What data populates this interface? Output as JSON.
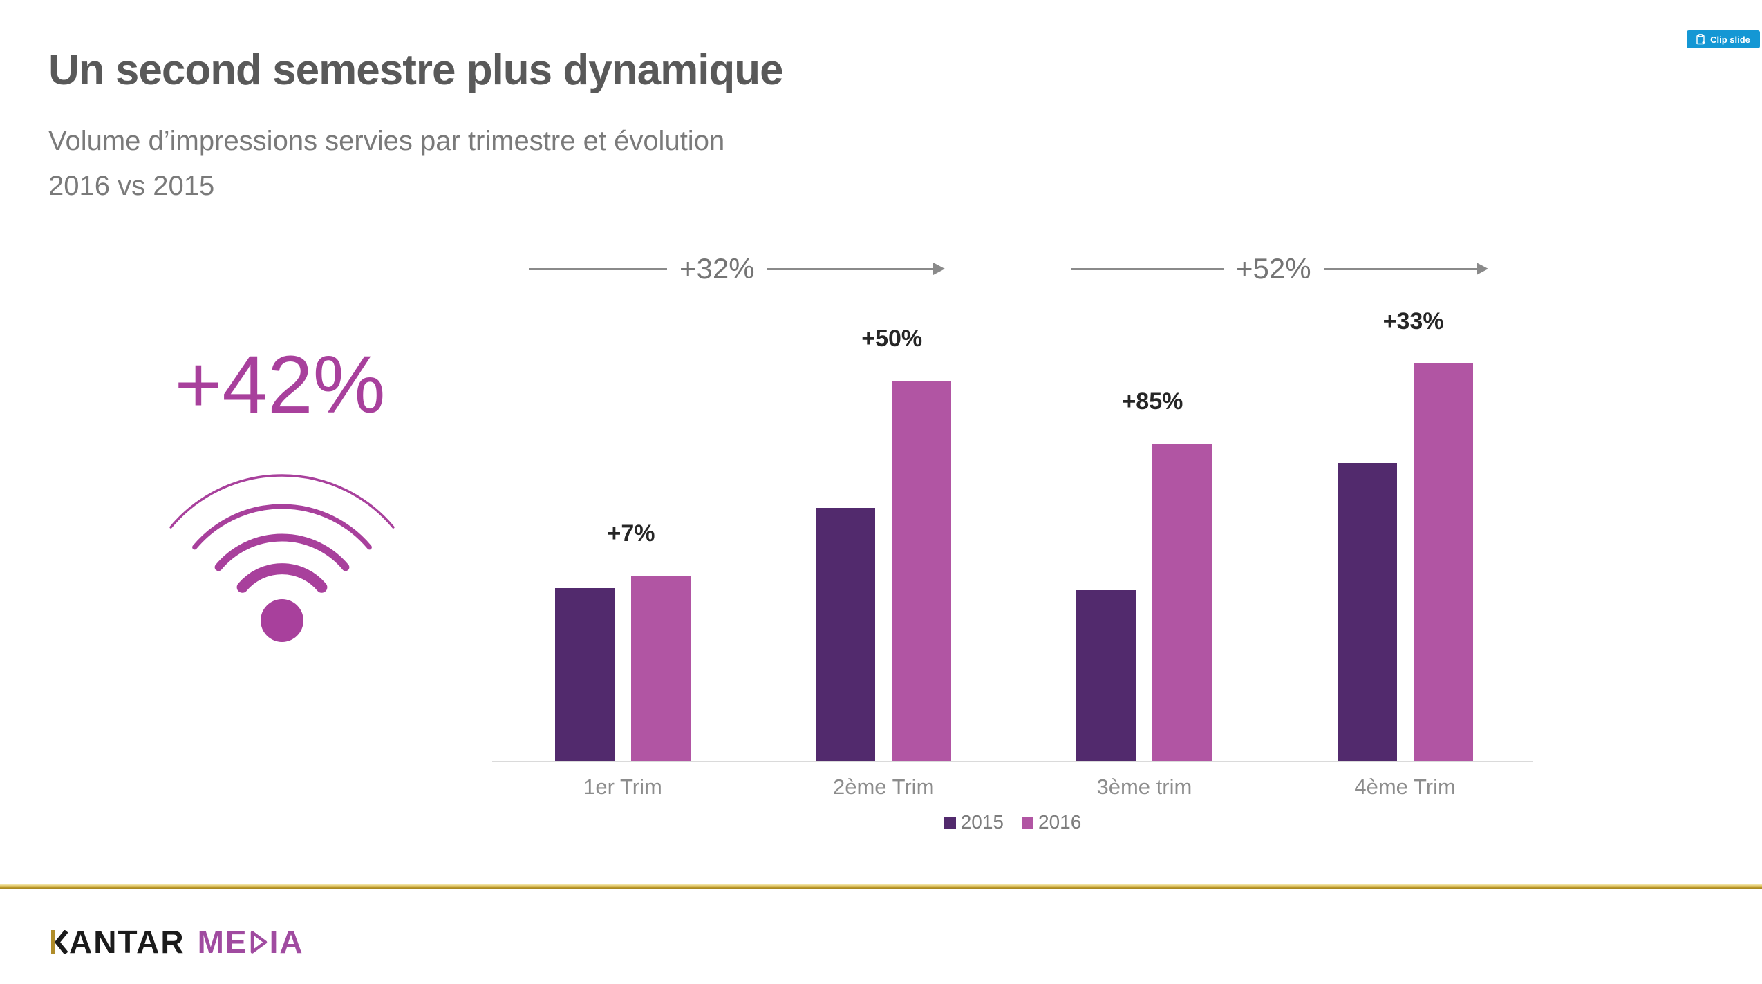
{
  "slide": {
    "title": "Un second semestre plus dynamique",
    "subtitle_line1": "Volume d’impressions servies par trimestre et évolution",
    "subtitle_line2": "2016 vs 2015",
    "highlight_value": "+42%",
    "highlight_icon": "wifi-signal-icon"
  },
  "clip_button": {
    "label": "Clip slide"
  },
  "chart_data": {
    "type": "bar",
    "categories": [
      "1er Trim",
      "2ème Trim",
      "3ème trim",
      "4ème Trim"
    ],
    "series": [
      {
        "name": "2015",
        "color": "#522a6d",
        "values": [
          100,
          146,
          99,
          172
        ]
      },
      {
        "name": "2016",
        "color": "#b155a3",
        "values": [
          107,
          219,
          183,
          229
        ]
      }
    ],
    "units": "relative volume index, 1er Trim 2015 = 100 (estimated from bar heights, no y-axis shown)",
    "bar_group_labels": [
      "+7%",
      "+50%",
      "+85%",
      "+33%"
    ],
    "semester_arrows": [
      {
        "label": "+32%"
      },
      {
        "label": "+52%"
      }
    ],
    "legend": [
      "2015",
      "2016"
    ],
    "legend_position": "bottom",
    "grid": false,
    "ylim": [
      0,
      240
    ]
  },
  "footer": {
    "logo_text": "KANTAR MEDIA",
    "logo_kantar_k": "K",
    "logo_kantar_rest": "ANTAR",
    "logo_media_pre": "ME",
    "logo_media_post": "IA"
  },
  "colors": {
    "series_2015": "#522a6d",
    "series_2016": "#b155a3",
    "highlight_magenta": "#a8409c",
    "arrow_gray": "#8a8a8a",
    "axis_gray": "#dadada",
    "title_gray": "#595959",
    "subtitle_gray": "#7a7a7a",
    "clip_button_blue": "#1497d4",
    "gold_line": "#c7a433",
    "kantar_black": "#1b1b1b",
    "kantar_gold": "#b08d2a",
    "media_purple": "#a04ba0"
  }
}
